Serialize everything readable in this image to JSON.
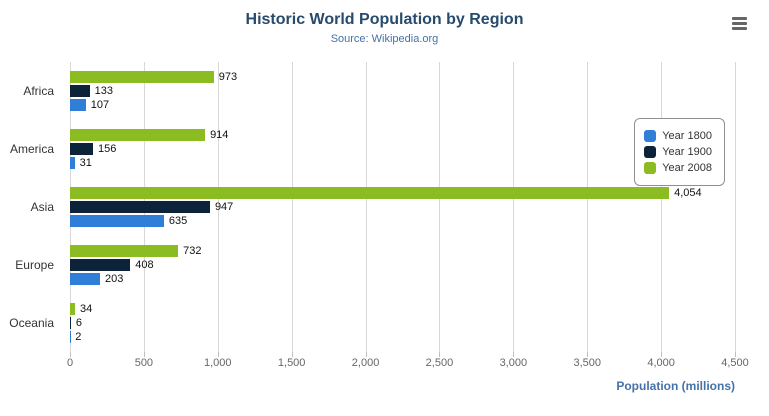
{
  "header": {
    "export_menu_icon": "hamburger-menu-icon"
  },
  "chart_data": {
    "type": "bar",
    "title": "Historic World Population by Region",
    "subtitle": "Source: Wikipedia.org",
    "categories": [
      "Africa",
      "America",
      "Asia",
      "Europe",
      "Oceania"
    ],
    "series": [
      {
        "name": "Year 1800",
        "color": "#2f7ed8",
        "values": [
          107,
          31,
          635,
          203,
          2
        ]
      },
      {
        "name": "Year 1900",
        "color": "#0d233a",
        "values": [
          133,
          156,
          947,
          408,
          6
        ]
      },
      {
        "name": "Year 2008",
        "color": "#8bbc21",
        "values": [
          973,
          914,
          4054,
          732,
          34
        ]
      }
    ],
    "visual_series_order_top_to_bottom": [
      "Year 2008",
      "Year 1900",
      "Year 1800"
    ],
    "data_labels": {
      "Africa": {
        "Year 1800": "107",
        "Year 1900": "133",
        "Year 2008": "973"
      },
      "America": {
        "Year 1800": "31",
        "Year 1900": "156",
        "Year 2008": "914"
      },
      "Asia": {
        "Year 1800": "635",
        "Year 1900": "947",
        "Year 2008": "4,054"
      },
      "Europe": {
        "Year 1800": "203",
        "Year 1900": "408",
        "Year 2008": "732"
      },
      "Oceania": {
        "Year 1800": "2",
        "Year 1900": "6",
        "Year 2008": "34"
      }
    },
    "xlabel": "Population (millions)",
    "xlim": [
      0,
      4500
    ],
    "xticks": [
      0,
      500,
      1000,
      1500,
      2000,
      2500,
      3000,
      3500,
      4000,
      4500
    ],
    "xtick_labels": [
      "0",
      "500",
      "1,000",
      "1,500",
      "2,000",
      "2,500",
      "3,000",
      "3,500",
      "4,000",
      "4,500"
    ],
    "grid": true,
    "legend_position": "right",
    "colors": {
      "title": "#274b6d",
      "subtitle": "#4572a7",
      "axis_label": "#666666",
      "gridline": "#d8d8d8"
    }
  }
}
